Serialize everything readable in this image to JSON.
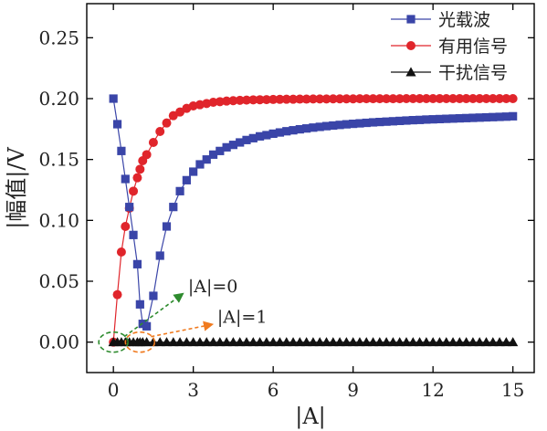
{
  "chart_data": {
    "type": "line",
    "xlabel": "|A|",
    "ylabel": "|幅值|/V",
    "xlim": [
      -1,
      15.8
    ],
    "ylim": [
      -0.025,
      0.278
    ],
    "xticks": [
      0,
      3,
      6,
      9,
      12,
      15
    ],
    "yticks": [
      0.0,
      0.05,
      0.1,
      0.15,
      0.2,
      0.25
    ],
    "xtick_labels": [
      "0",
      "3",
      "6",
      "9",
      "12",
      "15"
    ],
    "ytick_labels": [
      "0.00",
      "0.05",
      "0.10",
      "0.15",
      "0.20",
      "0.25"
    ],
    "legend_position": "top-right",
    "series": [
      {
        "name": "光载波",
        "marker": "square",
        "color": "#3a45a8",
        "x": [
          0,
          0.15,
          0.3,
          0.45,
          0.6,
          0.75,
          0.9,
          1.0,
          1.1,
          1.25,
          1.5,
          1.75,
          2.0,
          2.25,
          2.5,
          2.75,
          3,
          3.25,
          3.5,
          3.75,
          4,
          4.25,
          4.5,
          4.75,
          5,
          5.25,
          5.5,
          5.75,
          6,
          6.25,
          6.5,
          6.75,
          7,
          7.25,
          7.5,
          7.75,
          8,
          8.25,
          8.5,
          8.75,
          9,
          9.25,
          9.5,
          9.75,
          10,
          10.25,
          10.5,
          10.75,
          11,
          11.25,
          11.5,
          11.75,
          12,
          12.25,
          12.5,
          12.75,
          13,
          13.25,
          13.5,
          13.75,
          14,
          14.25,
          14.5,
          14.75,
          15
        ],
        "y": [
          0.2,
          0.179,
          0.157,
          0.134,
          0.111,
          0.088,
          0.064,
          0.031,
          0.015,
          0.013,
          0.038,
          0.071,
          0.095,
          0.111,
          0.124,
          0.133,
          0.14,
          0.146,
          0.15,
          0.154,
          0.157,
          0.16,
          0.162,
          0.164,
          0.166,
          0.1675,
          0.169,
          0.17,
          0.1712,
          0.1722,
          0.1732,
          0.174,
          0.1748,
          0.1755,
          0.1762,
          0.1768,
          0.1774,
          0.1779,
          0.1784,
          0.1789,
          0.1793,
          0.1797,
          0.1801,
          0.1805,
          0.1808,
          0.1811,
          0.1814,
          0.1817,
          0.182,
          0.1823,
          0.1825,
          0.1828,
          0.183,
          0.1832,
          0.1834,
          0.1836,
          0.1838,
          0.184,
          0.1842,
          0.1844,
          0.1846,
          0.1848,
          0.185,
          0.1852,
          0.1855
        ]
      },
      {
        "name": "有用信号",
        "marker": "circle",
        "color": "#e0252b",
        "x": [
          0,
          0.15,
          0.3,
          0.45,
          0.6,
          0.75,
          0.9,
          1.0,
          1.1,
          1.25,
          1.5,
          1.75,
          2.0,
          2.25,
          2.5,
          2.75,
          3,
          3.25,
          3.5,
          3.75,
          4,
          4.25,
          4.5,
          4.75,
          5,
          5.25,
          5.5,
          5.75,
          6,
          6.25,
          6.5,
          6.75,
          7,
          7.25,
          7.5,
          7.75,
          8,
          8.25,
          8.5,
          8.75,
          9,
          9.25,
          9.5,
          9.75,
          10,
          10.25,
          10.5,
          10.75,
          11,
          11.25,
          11.5,
          11.75,
          12,
          12.25,
          12.5,
          12.75,
          13,
          13.25,
          13.5,
          13.75,
          14,
          14.25,
          14.5,
          14.75,
          15
        ],
        "y": [
          0.0,
          0.039,
          0.074,
          0.095,
          0.11,
          0.124,
          0.135,
          0.142,
          0.149,
          0.154,
          0.164,
          0.173,
          0.18,
          0.186,
          0.189,
          0.192,
          0.194,
          0.195,
          0.196,
          0.197,
          0.1975,
          0.198,
          0.1983,
          0.1986,
          0.1988,
          0.199,
          0.1991,
          0.1992,
          0.1993,
          0.1994,
          0.1995,
          0.1995,
          0.1996,
          0.1996,
          0.1997,
          0.1997,
          0.1997,
          0.1998,
          0.1998,
          0.1998,
          0.1998,
          0.1999,
          0.1999,
          0.1999,
          0.1999,
          0.1999,
          0.1999,
          0.1999,
          0.2,
          0.2,
          0.2,
          0.2,
          0.2,
          0.2,
          0.2,
          0.2,
          0.2,
          0.2,
          0.2,
          0.2,
          0.2,
          0.2,
          0.2,
          0.2,
          0.2
        ]
      },
      {
        "name": "干扰信号",
        "marker": "triangle",
        "color": "#111111",
        "x": [
          0,
          0.15,
          0.3,
          0.45,
          0.6,
          0.75,
          0.9,
          1.0,
          1.1,
          1.25,
          1.5,
          1.75,
          2.0,
          2.25,
          2.5,
          2.75,
          3,
          3.25,
          3.5,
          3.75,
          4,
          4.25,
          4.5,
          4.75,
          5,
          5.25,
          5.5,
          5.75,
          6,
          6.25,
          6.5,
          6.75,
          7,
          7.25,
          7.5,
          7.75,
          8,
          8.25,
          8.5,
          8.75,
          9,
          9.25,
          9.5,
          9.75,
          10,
          10.25,
          10.5,
          10.75,
          11,
          11.25,
          11.5,
          11.75,
          12,
          12.25,
          12.5,
          12.75,
          13,
          13.25,
          13.5,
          13.75,
          14,
          14.25,
          14.5,
          14.75,
          15
        ],
        "y": [
          0,
          0,
          0,
          0,
          0,
          0,
          0,
          0,
          0,
          0,
          0,
          0,
          0,
          0,
          0,
          0,
          0,
          0,
          0,
          0,
          0,
          0,
          0,
          0,
          0,
          0,
          0,
          0,
          0,
          0,
          0,
          0,
          0,
          0,
          0,
          0,
          0,
          0,
          0,
          0,
          0,
          0,
          0,
          0,
          0,
          0,
          0,
          0,
          0,
          0,
          0,
          0,
          0,
          0,
          0,
          0,
          0,
          0,
          0,
          0,
          0,
          0,
          0,
          0,
          0
        ]
      }
    ],
    "annotations": [
      {
        "text": "|A|=0",
        "color": "#2e8b2e",
        "target_x": 0,
        "target_y": 0,
        "text_x": 2.8,
        "text_y": 0.041
      },
      {
        "text": "|A|=1",
        "color": "#f07a1e",
        "target_x": 1,
        "target_y": 0,
        "text_x": 3.9,
        "text_y": 0.016
      }
    ]
  }
}
